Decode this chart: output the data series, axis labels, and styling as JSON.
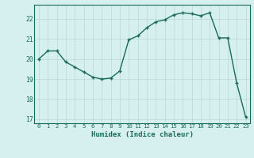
{
  "x": [
    0,
    1,
    2,
    3,
    4,
    5,
    6,
    7,
    8,
    9,
    10,
    11,
    12,
    13,
    14,
    15,
    16,
    17,
    18,
    19,
    20,
    21,
    22,
    23
  ],
  "y": [
    20.0,
    20.4,
    20.4,
    19.85,
    19.6,
    19.35,
    19.1,
    19.0,
    19.05,
    19.4,
    20.95,
    21.15,
    21.55,
    21.85,
    21.95,
    22.2,
    22.3,
    22.25,
    22.15,
    22.3,
    21.05,
    21.05,
    18.8,
    17.1
  ],
  "xlabel": "Humidex (Indice chaleur)",
  "ylim": [
    16.8,
    22.7
  ],
  "xlim": [
    -0.5,
    23.5
  ],
  "yticks": [
    17,
    18,
    19,
    20,
    21,
    22
  ],
  "xticks": [
    0,
    1,
    2,
    3,
    4,
    5,
    6,
    7,
    8,
    9,
    10,
    11,
    12,
    13,
    14,
    15,
    16,
    17,
    18,
    19,
    20,
    21,
    22,
    23
  ],
  "line_color": "#1a6b5a",
  "marker_color": "#1a6b5a",
  "bg_color": "#d6f0ef",
  "grid_color": "#b8d8d8",
  "tick_color": "#1a6b5a",
  "label_color": "#1a6b5a",
  "spine_color": "#1a6b5a"
}
